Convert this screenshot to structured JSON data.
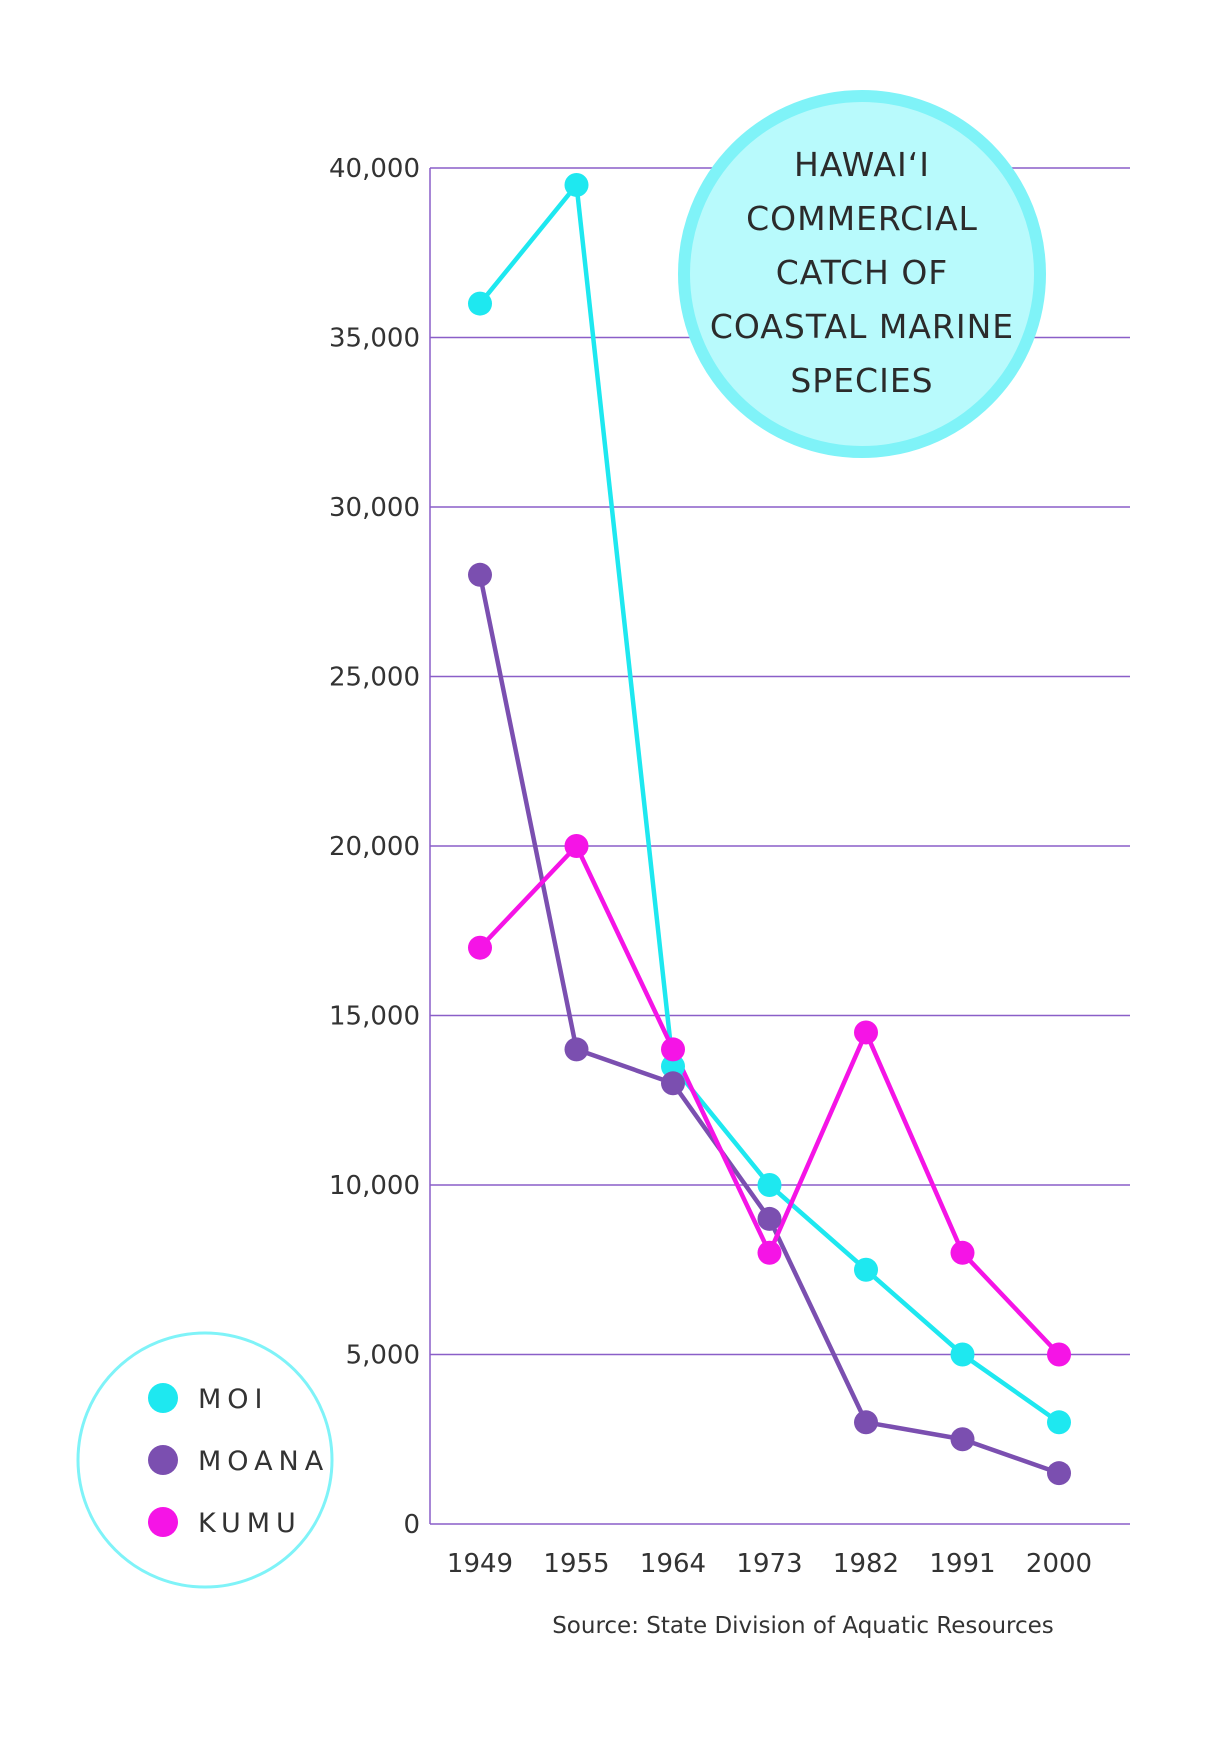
{
  "chart_data": {
    "type": "line",
    "title_lines": [
      "HAWAI‘I",
      "COMMERCIAL",
      "CATCH OF",
      "COASTAL MARINE",
      "SPECIES"
    ],
    "categories": [
      "1949",
      "1955",
      "1964",
      "1973",
      "1982",
      "1991",
      "2000"
    ],
    "ylim": [
      0,
      40000
    ],
    "yticks": [
      0,
      5000,
      10000,
      15000,
      20000,
      25000,
      30000,
      35000,
      40000
    ],
    "ytick_labels": [
      "0",
      "5,000",
      "10,000",
      "15,000",
      "20,000",
      "25,000",
      "30,000",
      "35,000",
      "40,000"
    ],
    "grid": true,
    "legend_position": "bottom-left",
    "series": [
      {
        "name": "MOI",
        "color": "#1ee8f0",
        "values": [
          36000,
          39500,
          13500,
          10000,
          7500,
          5000,
          3000
        ]
      },
      {
        "name": "MOANA",
        "color": "#7b4fb0",
        "values": [
          28000,
          14000,
          13000,
          9000,
          3000,
          2500,
          1500
        ]
      },
      {
        "name": "KUMU",
        "color": "#f514e6",
        "values": [
          17000,
          20000,
          14000,
          8000,
          14500,
          8000,
          5000
        ]
      }
    ],
    "source": "Source: State Division of Aquatic Resources"
  },
  "colors": {
    "grid": "#8a5fc8",
    "axis": "#8a5fc8",
    "title_circle_fill": "#b8fafc",
    "title_circle_stroke": "#7ff3f8",
    "legend_circle_stroke": "#7ff3f8"
  }
}
